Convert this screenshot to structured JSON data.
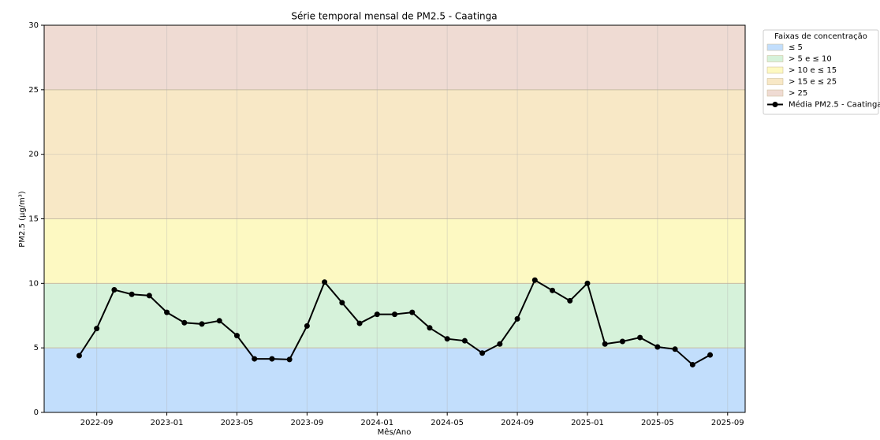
{
  "chart_data": {
    "type": "line",
    "title": "Série temporal mensal de PM2.5 - Caatinga",
    "xlabel": "Mês/Ano",
    "ylabel": "PM2.5 (µg/m³)",
    "x": [
      "2022-08",
      "2022-09",
      "2022-10",
      "2022-11",
      "2022-12",
      "2023-01",
      "2023-02",
      "2023-03",
      "2023-04",
      "2023-05",
      "2023-06",
      "2023-07",
      "2023-08",
      "2023-09",
      "2023-10",
      "2023-11",
      "2023-12",
      "2024-01",
      "2024-02",
      "2024-03",
      "2024-04",
      "2024-05",
      "2024-06",
      "2024-07",
      "2024-08",
      "2024-09",
      "2024-10",
      "2024-11",
      "2024-12",
      "2025-01",
      "2025-02",
      "2025-03",
      "2025-04",
      "2025-05",
      "2025-06",
      "2025-07",
      "2025-08"
    ],
    "series": [
      {
        "name": "Média PM2.5 - Caatinga",
        "color": "#000000",
        "values": [
          4.4,
          6.5,
          9.5,
          9.15,
          9.05,
          7.75,
          6.95,
          6.85,
          7.1,
          5.95,
          4.15,
          4.15,
          4.1,
          6.7,
          10.1,
          8.5,
          6.9,
          7.6,
          7.6,
          7.75,
          6.55,
          5.7,
          5.55,
          4.6,
          5.3,
          7.25,
          10.25,
          9.45,
          8.65,
          10.0,
          5.3,
          5.5,
          5.8,
          5.07,
          4.9,
          3.7,
          4.45
        ]
      }
    ],
    "bands_title": "Faixas de concentração",
    "bands": [
      {
        "name": "≤ 5",
        "from": 0,
        "color": "#c2defc"
      },
      {
        "name": "> 5 e ≤ 10",
        "from": 5,
        "color": "#d6f2da"
      },
      {
        "name": "> 10 e ≤ 15",
        "from": 10,
        "color": "#fdf9c2"
      },
      {
        "name": "> 15 e ≤ 25",
        "from": 15,
        "color": "#f8e8c6"
      },
      {
        "name": "> 25",
        "from": 25,
        "color": "#efdbd3"
      }
    ],
    "xlim": [
      "2022-06",
      "2025-10"
    ],
    "xticks": [
      "2022-09",
      "2023-01",
      "2023-05",
      "2023-09",
      "2024-01",
      "2024-05",
      "2024-09",
      "2025-01",
      "2025-05",
      "2025-09"
    ],
    "ylim": [
      0,
      30
    ],
    "yticks": [
      0,
      5,
      10,
      15,
      20,
      25,
      30
    ],
    "grid": true,
    "legend": "outside right"
  }
}
